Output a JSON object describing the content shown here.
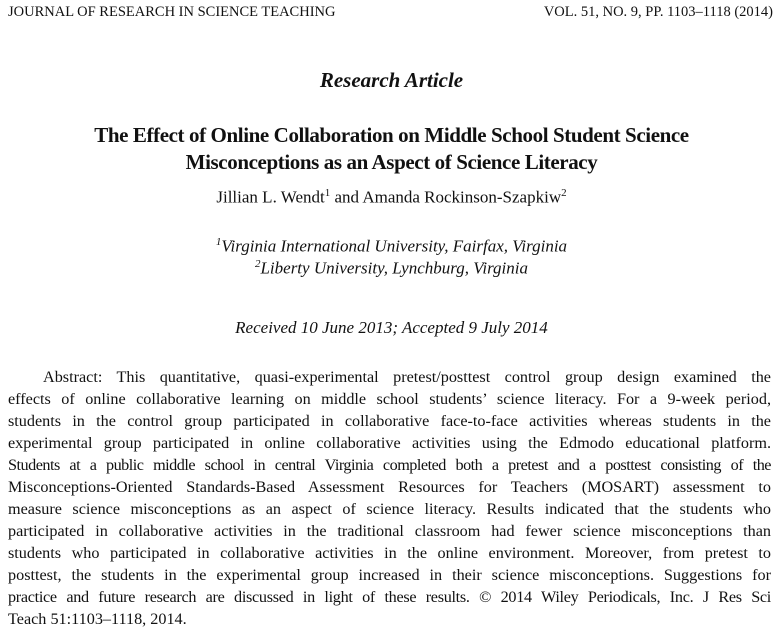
{
  "header": {
    "journal": "JOURNAL OF RESEARCH IN SCIENCE TEACHING",
    "citation": "VOL. 51, NO. 9, PP. 1103–1118 (2014)"
  },
  "article_type": "Research Article",
  "title_lines": [
    "The Effect of Online Collaboration on Middle School Student Science",
    "Misconceptions as an Aspect of Science Literacy"
  ],
  "authors": [
    {
      "name": "Jillian L. Wendt",
      "sup": "1"
    },
    {
      "name": "Amanda Rockinson-Szapkiw",
      "sup": "2"
    }
  ],
  "authors_joiner": "and",
  "affiliations": [
    {
      "sup": "1",
      "text": "Virginia International University, Fairfax, Virginia"
    },
    {
      "sup": "2",
      "text": "Liberty University, Lynchburg, Virginia"
    }
  ],
  "dates": "Received 10 June 2013; Accepted 9 July 2014",
  "abstract_lines": [
    "Abstract: This quantitative, quasi-experimental pretest/posttest control group design examined the",
    "effects of online collaborative learning on middle school students’ science literacy. For a 9-week period,",
    "students in the control group participated in collaborative face-to-face activities whereas students in the",
    "experimental group participated in online collaborative activities using the Edmodo educational platform.",
    "Students at a public middle school in central Virginia completed both a pretest and a posttest consisting of the",
    "Misconceptions-Oriented Standards-Based Assessment Resources for Teachers (MOSART) assessment to",
    "measure science misconceptions as an aspect of science literacy. Results indicated that the students who",
    "participated in collaborative activities in the traditional classroom had fewer science misconceptions than",
    "students who participated in collaborative activities in the online environment. Moreover, from pretest to",
    "posttest, the students in the experimental group increased in their science misconceptions. Suggestions for",
    "practice and future research are discussed in light of these results.  © 2014 Wiley Periodicals, Inc. J Res Sci",
    "Teach 51:1103–1118, 2014."
  ]
}
